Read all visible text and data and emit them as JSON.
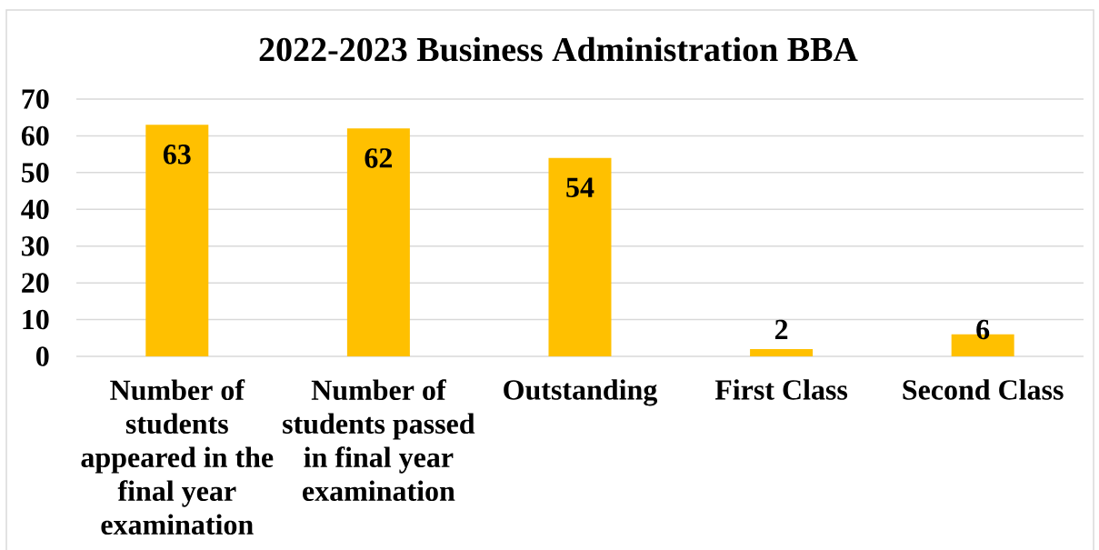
{
  "chart_data": {
    "type": "bar",
    "title": "2022-2023 Business Administration BBA",
    "categories": [
      "Number of students appeared in the final year examination",
      "Number of students passed in final year examination",
      "Outstanding",
      "First Class",
      "Second Class"
    ],
    "values": [
      63,
      62,
      54,
      2,
      6
    ],
    "color": "#ffc000",
    "ylim": [
      0,
      70
    ],
    "yticks": [
      0,
      10,
      20,
      30,
      40,
      50,
      60,
      70
    ],
    "grid": "y",
    "data_labels": true
  }
}
